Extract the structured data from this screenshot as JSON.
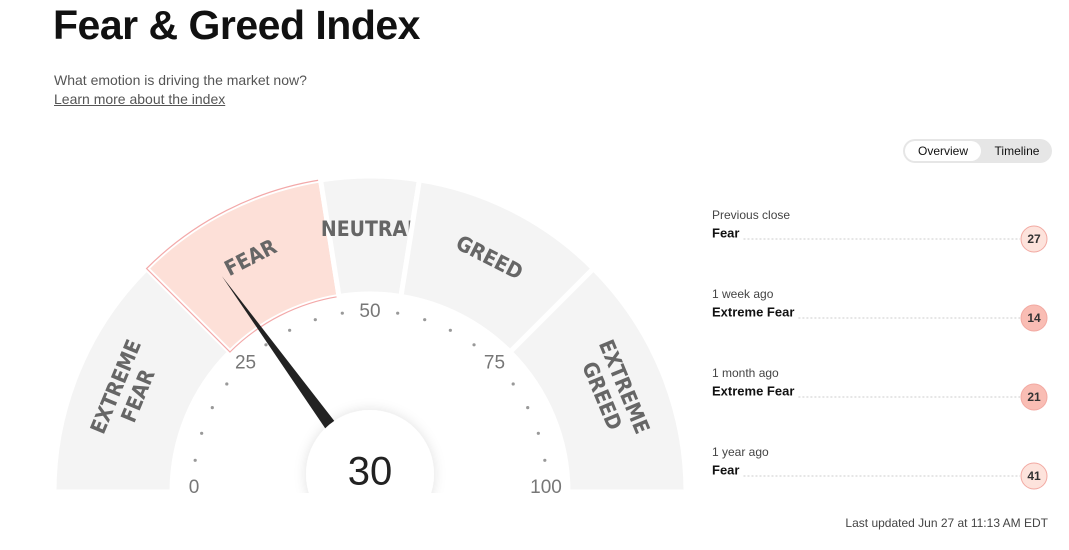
{
  "header": {
    "title": "Fear & Greed Index",
    "subtitle": "What emotion is driving the market now?",
    "link": "Learn more about the index"
  },
  "tabs": [
    "Overview",
    "Timeline"
  ],
  "gauge": {
    "value": 30,
    "min": 0,
    "max": 100,
    "ticks": [
      0,
      25,
      50,
      75,
      100
    ],
    "segments": [
      {
        "label": [
          "EXTREME",
          "FEAR"
        ],
        "range": [
          0,
          25
        ]
      },
      {
        "label": [
          "FEAR"
        ],
        "range": [
          25,
          45
        ]
      },
      {
        "label": [
          "NEUTRAL"
        ],
        "range": [
          45,
          55
        ]
      },
      {
        "label": [
          "GREED"
        ],
        "range": [
          55,
          75
        ]
      },
      {
        "label": [
          "EXTREME",
          "GREED"
        ],
        "range": [
          75,
          100
        ]
      }
    ]
  },
  "history": [
    {
      "when": "Previous close",
      "rating": "Fear",
      "value": 27,
      "color": "#fde3dc"
    },
    {
      "when": "1 week ago",
      "rating": "Extreme Fear",
      "value": 14,
      "color": "#f9bdb4"
    },
    {
      "when": "1 month ago",
      "rating": "Extreme Fear",
      "value": 21,
      "color": "#f9bdb4"
    },
    {
      "when": "1 year ago",
      "rating": "Fear",
      "value": 41,
      "color": "#fde3dc"
    }
  ],
  "footer": "Last updated Jun 27 at 11:13 AM EDT"
}
